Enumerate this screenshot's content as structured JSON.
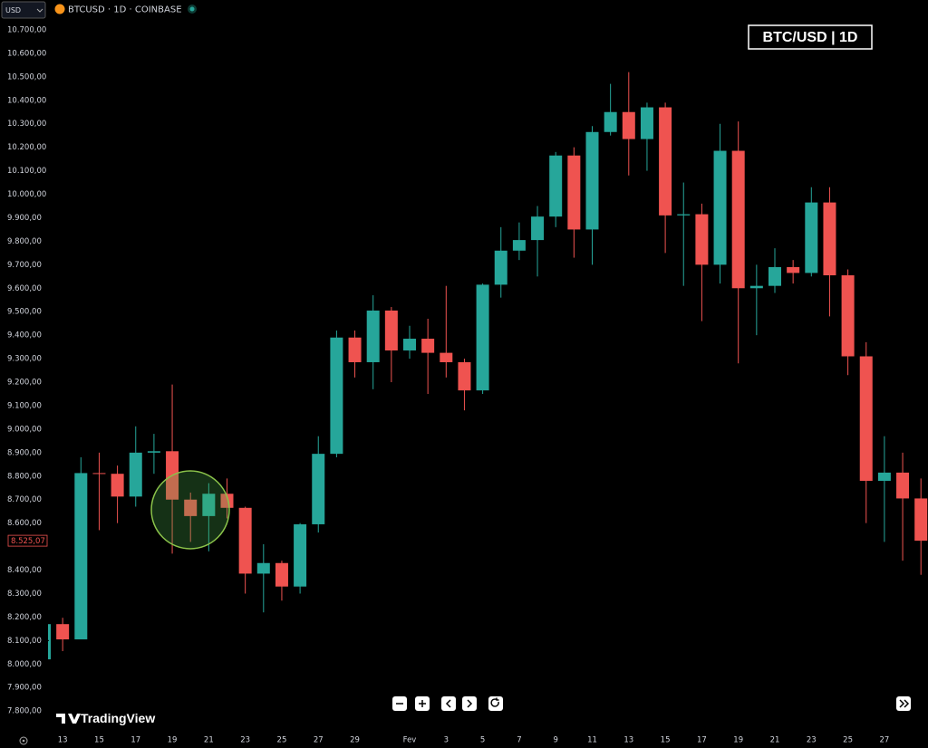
{
  "chart_data": {
    "type": "candlestick",
    "currency": "USD",
    "symbol": "BTCUSD · 1D · COINBASE",
    "title": "BTC/USD | 1D",
    "logo": "TradingView",
    "up_color": "#26a69a",
    "down_color": "#ef5350",
    "categories": [
      null,
      "13",
      null,
      "15",
      null,
      "17",
      null,
      "19",
      null,
      "21",
      null,
      "23",
      null,
      "25",
      null,
      "27",
      null,
      "29",
      null,
      null,
      "Fev",
      null,
      "3",
      null,
      "5",
      null,
      "7",
      null,
      "9",
      null,
      "11",
      null,
      "13",
      null,
      "15",
      null,
      "17",
      null,
      "19",
      null,
      "21",
      null,
      "23",
      null,
      "25",
      null,
      "27",
      null,
      null
    ],
    "open": [
      8020,
      8170,
      8105,
      8813,
      8810,
      8713,
      8900,
      8906,
      8700,
      8630,
      8725,
      8665,
      8385,
      8430,
      8330,
      8595,
      8895,
      9390,
      9285,
      9505,
      9335,
      9385,
      9325,
      9285,
      9165,
      9615,
      9760,
      9805,
      9905,
      10165,
      9850,
      10265,
      10350,
      10235,
      10370,
      9910,
      9915,
      9700,
      10185,
      9600,
      9610,
      9690,
      9665,
      9965,
      9655,
      9310,
      8780,
      8815,
      8705
    ],
    "high": [
      8180,
      8197,
      8880,
      8900,
      8845,
      9012,
      8980,
      9190,
      8730,
      8770,
      8790,
      8670,
      8510,
      8440,
      8600,
      8970,
      9420,
      9420,
      9570,
      9520,
      9440,
      9470,
      9610,
      9300,
      9620,
      9860,
      9880,
      9950,
      10180,
      10200,
      10290,
      10470,
      10520,
      10390,
      10390,
      10050,
      9960,
      10300,
      10310,
      9700,
      9770,
      9720,
      10030,
      10030,
      9680,
      9370,
      8970,
      8900,
      8790
    ],
    "low": [
      8000,
      8055,
      8105,
      8570,
      8600,
      8670,
      8810,
      8470,
      8520,
      8480,
      8620,
      8300,
      8220,
      8270,
      8300,
      8560,
      8880,
      9220,
      9170,
      9200,
      9300,
      9150,
      9220,
      9080,
      9150,
      9560,
      9720,
      9650,
      9860,
      9730,
      9700,
      10250,
      10080,
      10100,
      9750,
      9610,
      9460,
      9620,
      9280,
      9400,
      9580,
      9620,
      9650,
      9480,
      9230,
      8600,
      8520,
      8440,
      8380
    ],
    "close": [
      8170,
      8105,
      8813,
      8810,
      8713,
      8900,
      8906,
      8700,
      8630,
      8725,
      8665,
      8385,
      8430,
      8330,
      8595,
      8895,
      9390,
      9285,
      9505,
      9335,
      9385,
      9325,
      9285,
      9165,
      9615,
      9760,
      9805,
      9905,
      10165,
      9850,
      10265,
      10350,
      10235,
      10370,
      9910,
      9915,
      9700,
      10185,
      9600,
      9610,
      9690,
      9665,
      9965,
      9655,
      9310,
      8780,
      8815,
      8705,
      8525
    ],
    "last_price": {
      "value": 8525.07,
      "label": "8.525,07"
    },
    "ylim": [
      7712,
      10827
    ],
    "yticks": [
      {
        "value": 7800,
        "label": "7.800,00"
      },
      {
        "value": 7900,
        "label": "7.900,00"
      },
      {
        "value": 8000,
        "label": "8.000,00"
      },
      {
        "value": 8100,
        "label": "8.100,00"
      },
      {
        "value": 8200,
        "label": "8.200,00"
      },
      {
        "value": 8300,
        "label": "8.300,00"
      },
      {
        "value": 8400,
        "label": "8.400,00"
      },
      {
        "value": 8600,
        "label": "8.600,00"
      },
      {
        "value": 8700,
        "label": "8.700,00"
      },
      {
        "value": 8800,
        "label": "8.800,00"
      },
      {
        "value": 8900,
        "label": "8.900,00"
      },
      {
        "value": 9000,
        "label": "9.000,00"
      },
      {
        "value": 9100,
        "label": "9.100,00"
      },
      {
        "value": 9200,
        "label": "9.200,00"
      },
      {
        "value": 9300,
        "label": "9.300,00"
      },
      {
        "value": 9400,
        "label": "9.400,00"
      },
      {
        "value": 9500,
        "label": "9.500,00"
      },
      {
        "value": 9600,
        "label": "9.600,00"
      },
      {
        "value": 9700,
        "label": "9.700,00"
      },
      {
        "value": 9800,
        "label": "9.800,00"
      },
      {
        "value": 9900,
        "label": "9.900,00"
      },
      {
        "value": 10000,
        "label": "10.000,00"
      },
      {
        "value": 10100,
        "label": "10.100,00"
      },
      {
        "value": 10200,
        "label": "10.200,00"
      },
      {
        "value": 10300,
        "label": "10.300,00"
      },
      {
        "value": 10400,
        "label": "10.400,00"
      },
      {
        "value": 10500,
        "label": "10.500,00"
      },
      {
        "value": 10600,
        "label": "10.600,00"
      },
      {
        "value": 10700,
        "label": "10.700,00"
      }
    ]
  }
}
